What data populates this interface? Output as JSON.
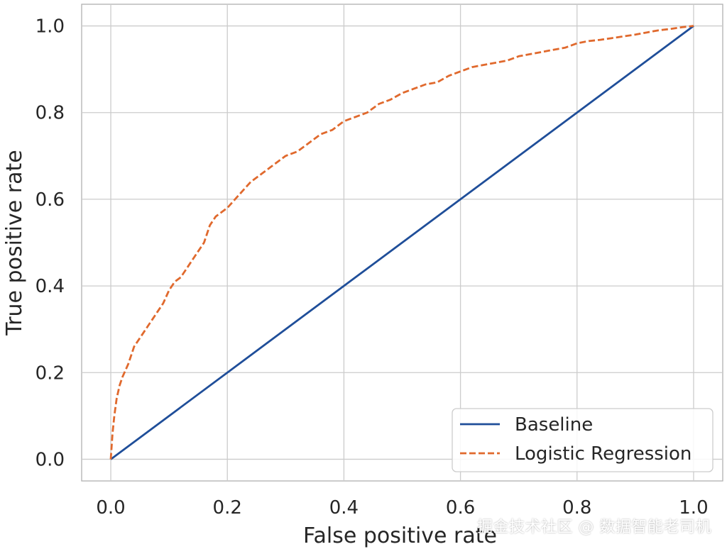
{
  "chart_data": {
    "type": "line",
    "xlabel": "False positive rate",
    "ylabel": "True positive rate",
    "xlim": [
      -0.05,
      1.05
    ],
    "ylim": [
      -0.05,
      1.05
    ],
    "x_ticks": [
      "0.0",
      "0.2",
      "0.4",
      "0.6",
      "0.8",
      "1.0"
    ],
    "y_ticks": [
      "0.0",
      "0.2",
      "0.4",
      "0.6",
      "0.8",
      "1.0"
    ],
    "grid": true,
    "legend_position": "lower-right",
    "series": [
      {
        "name": "Baseline",
        "style": "solid",
        "color": "#1f4e99",
        "x": [
          0,
          1
        ],
        "y": [
          0,
          1
        ]
      },
      {
        "name": "Logistic Regression",
        "style": "dashed",
        "color": "#e0692d",
        "x": [
          0,
          0.003,
          0.006,
          0.01,
          0.015,
          0.02,
          0.03,
          0.04,
          0.05,
          0.06,
          0.07,
          0.08,
          0.09,
          0.1,
          0.11,
          0.12,
          0.13,
          0.14,
          0.15,
          0.16,
          0.17,
          0.18,
          0.2,
          0.22,
          0.24,
          0.26,
          0.28,
          0.3,
          0.32,
          0.34,
          0.36,
          0.38,
          0.4,
          0.42,
          0.44,
          0.46,
          0.48,
          0.5,
          0.52,
          0.54,
          0.56,
          0.58,
          0.6,
          0.62,
          0.64,
          0.66,
          0.68,
          0.7,
          0.72,
          0.74,
          0.76,
          0.78,
          0.8,
          0.82,
          0.84,
          0.86,
          0.88,
          0.9,
          0.92,
          0.94,
          0.96,
          0.98,
          1.0
        ],
        "y": [
          0,
          0.06,
          0.1,
          0.14,
          0.17,
          0.19,
          0.22,
          0.26,
          0.28,
          0.3,
          0.32,
          0.34,
          0.36,
          0.39,
          0.41,
          0.42,
          0.44,
          0.46,
          0.48,
          0.5,
          0.54,
          0.56,
          0.58,
          0.61,
          0.64,
          0.66,
          0.68,
          0.7,
          0.71,
          0.73,
          0.75,
          0.76,
          0.78,
          0.79,
          0.8,
          0.82,
          0.83,
          0.845,
          0.855,
          0.865,
          0.87,
          0.885,
          0.895,
          0.905,
          0.91,
          0.915,
          0.92,
          0.93,
          0.935,
          0.94,
          0.945,
          0.95,
          0.96,
          0.965,
          0.968,
          0.972,
          0.976,
          0.98,
          0.985,
          0.99,
          0.993,
          0.997,
          1.0
        ]
      }
    ]
  },
  "watermark": "掘金技术社区 @ 数据智能老司机"
}
